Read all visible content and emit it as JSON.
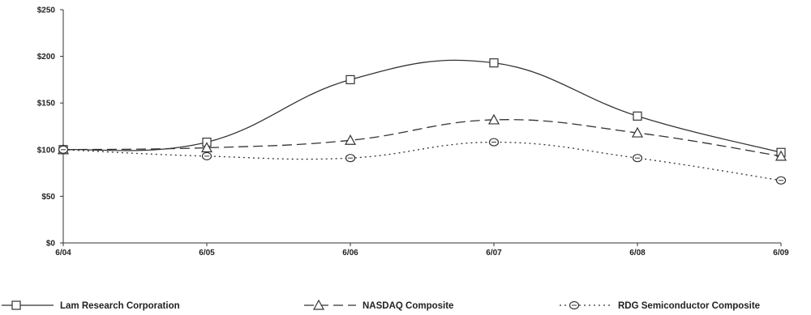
{
  "chart_data": {
    "type": "line",
    "categories": [
      "6/04",
      "6/05",
      "6/06",
      "6/07",
      "6/08",
      "6/09"
    ],
    "ylim": [
      0,
      250
    ],
    "yticks": [
      0,
      50,
      100,
      150,
      200,
      250
    ],
    "ytick_labels": [
      "$0",
      "$50",
      "$100",
      "$150",
      "$200",
      "$250"
    ],
    "grid": false,
    "legend_position": "bottom",
    "series": [
      {
        "name": "Lam Research Corporation",
        "values": [
          100,
          108,
          175,
          193,
          136,
          97
        ],
        "marker": "square",
        "dash": "solid",
        "color": "#333333"
      },
      {
        "name": "NASDAQ Composite",
        "values": [
          100,
          102,
          110,
          132,
          118,
          93
        ],
        "marker": "triangle",
        "dash": "long-dash",
        "color": "#333333"
      },
      {
        "name": "RDG Semiconductor Composite",
        "values": [
          100,
          93,
          91,
          108,
          91,
          67
        ],
        "marker": "circle",
        "dash": "dotted",
        "color": "#333333"
      }
    ]
  }
}
